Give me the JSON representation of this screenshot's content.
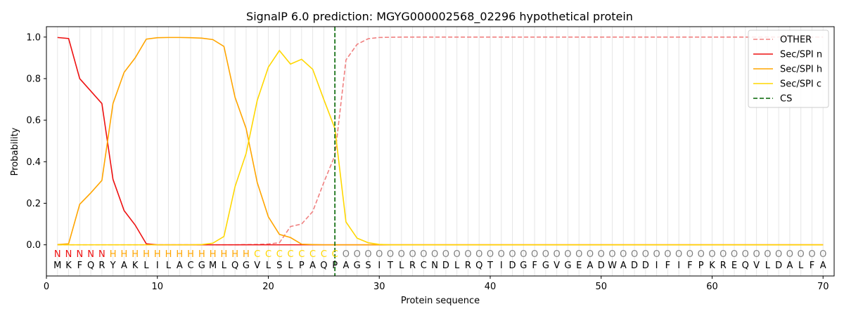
{
  "chart_data": {
    "type": "line",
    "title": "SignalP 6.0 prediction: MGYG000002568_02296 hypothetical protein",
    "xlabel": "Protein sequence",
    "ylabel": "Probability",
    "xlim": [
      0,
      71
    ],
    "ylim": [
      -0.15,
      1.05
    ],
    "xticks": [
      0,
      10,
      20,
      30,
      40,
      50,
      60,
      70
    ],
    "yticks": [
      0.0,
      0.2,
      0.4,
      0.6,
      0.8,
      1.0
    ],
    "ytick_labels": [
      "0.0",
      "0.2",
      "0.4",
      "0.6",
      "0.8",
      "1.0"
    ],
    "grid": "vertical lines at each residue",
    "legend_position": "top-right",
    "sequence": [
      "M",
      "K",
      "F",
      "Q",
      "R",
      "Y",
      "A",
      "K",
      "L",
      "I",
      "L",
      "A",
      "C",
      "G",
      "M",
      "L",
      "Q",
      "G",
      "V",
      "L",
      "S",
      "L",
      "P",
      "A",
      "Q",
      "P",
      "A",
      "G",
      "S",
      "I",
      "T",
      "L",
      "R",
      "C",
      "N",
      "D",
      "L",
      "R",
      "Q",
      "T",
      "I",
      "D",
      "G",
      "F",
      "G",
      "V",
      "G",
      "E",
      "A",
      "D",
      "W",
      "A",
      "D",
      "D",
      "I",
      "F",
      "I",
      "F",
      "P",
      "K",
      "R",
      "E",
      "Q",
      "V",
      "L",
      "D",
      "A",
      "L",
      "F",
      "A"
    ],
    "region_labels": [
      "N",
      "N",
      "N",
      "N",
      "N",
      "H",
      "H",
      "H",
      "H",
      "H",
      "H",
      "H",
      "H",
      "H",
      "H",
      "H",
      "H",
      "H",
      "C",
      "C",
      "C",
      "C",
      "C",
      "C",
      "C",
      "C",
      "O",
      "O",
      "O",
      "O",
      "O",
      "O",
      "O",
      "O",
      "O",
      "O",
      "O",
      "O",
      "O",
      "O",
      "O",
      "O",
      "O",
      "O",
      "O",
      "O",
      "O",
      "O",
      "O",
      "O",
      "O",
      "O",
      "O",
      "O",
      "O",
      "O",
      "O",
      "O",
      "O",
      "O",
      "O",
      "O",
      "O",
      "O",
      "O",
      "O",
      "O",
      "O",
      "O",
      "O"
    ],
    "region_colors": {
      "N": "#ee1111",
      "H": "#ffa500",
      "C": "#ffd700",
      "O": "#808080"
    },
    "cleavage_site": 26,
    "series": [
      {
        "name": "OTHER",
        "color": "#f08080",
        "style": "dashed",
        "values": [
          0,
          0,
          0,
          0,
          0,
          0,
          0,
          0,
          0,
          0,
          0,
          0,
          0,
          0,
          0,
          0,
          0,
          0.001,
          0.002,
          0.004,
          0.01,
          0.088,
          0.1,
          0.16,
          0.3,
          0.43,
          0.89,
          0.965,
          0.992,
          0.998,
          0.999,
          1,
          1,
          1,
          1,
          1,
          1,
          1,
          1,
          1,
          1,
          1,
          1,
          1,
          1,
          1,
          1,
          1,
          1,
          1,
          1,
          1,
          1,
          1,
          1,
          1,
          1,
          1,
          1,
          1,
          1,
          1,
          1,
          1,
          1,
          1,
          1,
          1,
          1,
          1
        ]
      },
      {
        "name": "Sec/SPI n",
        "color": "#ee1111",
        "style": "solid",
        "values": [
          0.998,
          0.993,
          0.8,
          0.74,
          0.68,
          0.315,
          0.165,
          0.095,
          0.005,
          0,
          0,
          0,
          0,
          0,
          0,
          0,
          0,
          0,
          0,
          0,
          0,
          0,
          0,
          0,
          0,
          0,
          0,
          0,
          0,
          0,
          0,
          0,
          0,
          0,
          0,
          0,
          0,
          0,
          0,
          0,
          0,
          0,
          0,
          0,
          0,
          0,
          0,
          0,
          0,
          0,
          0,
          0,
          0,
          0,
          0,
          0,
          0,
          0,
          0,
          0,
          0,
          0,
          0,
          0,
          0,
          0,
          0,
          0,
          0,
          0
        ]
      },
      {
        "name": "Sec/SPI h",
        "color": "#ffa500",
        "style": "solid",
        "values": [
          0.001,
          0.005,
          0.195,
          0.25,
          0.31,
          0.68,
          0.83,
          0.9,
          0.99,
          0.997,
          0.998,
          0.998,
          0.997,
          0.995,
          0.988,
          0.955,
          0.71,
          0.56,
          0.3,
          0.135,
          0.05,
          0.035,
          0.003,
          0.001,
          0,
          0,
          0,
          0,
          0,
          0,
          0,
          0,
          0,
          0,
          0,
          0,
          0,
          0,
          0,
          0,
          0,
          0,
          0,
          0,
          0,
          0,
          0,
          0,
          0,
          0,
          0,
          0,
          0,
          0,
          0,
          0,
          0,
          0,
          0,
          0,
          0,
          0,
          0,
          0,
          0,
          0,
          0,
          0,
          0,
          0
        ]
      },
      {
        "name": "Sec/SPI c",
        "color": "#ffd700",
        "style": "solid",
        "values": [
          0,
          0,
          0,
          0,
          0,
          0,
          0,
          0,
          0,
          0,
          0,
          0,
          0,
          0.001,
          0.008,
          0.04,
          0.28,
          0.44,
          0.695,
          0.855,
          0.935,
          0.87,
          0.893,
          0.845,
          0.7,
          0.56,
          0.11,
          0.032,
          0.01,
          0.002,
          0,
          0,
          0,
          0,
          0,
          0,
          0,
          0,
          0,
          0,
          0,
          0,
          0,
          0,
          0,
          0,
          0,
          0,
          0,
          0,
          0,
          0,
          0,
          0,
          0,
          0,
          0,
          0,
          0,
          0,
          0,
          0,
          0,
          0,
          0,
          0,
          0,
          0,
          0,
          0
        ]
      },
      {
        "name": "CS",
        "color": "#006400",
        "style": "dashed",
        "values": []
      }
    ]
  }
}
